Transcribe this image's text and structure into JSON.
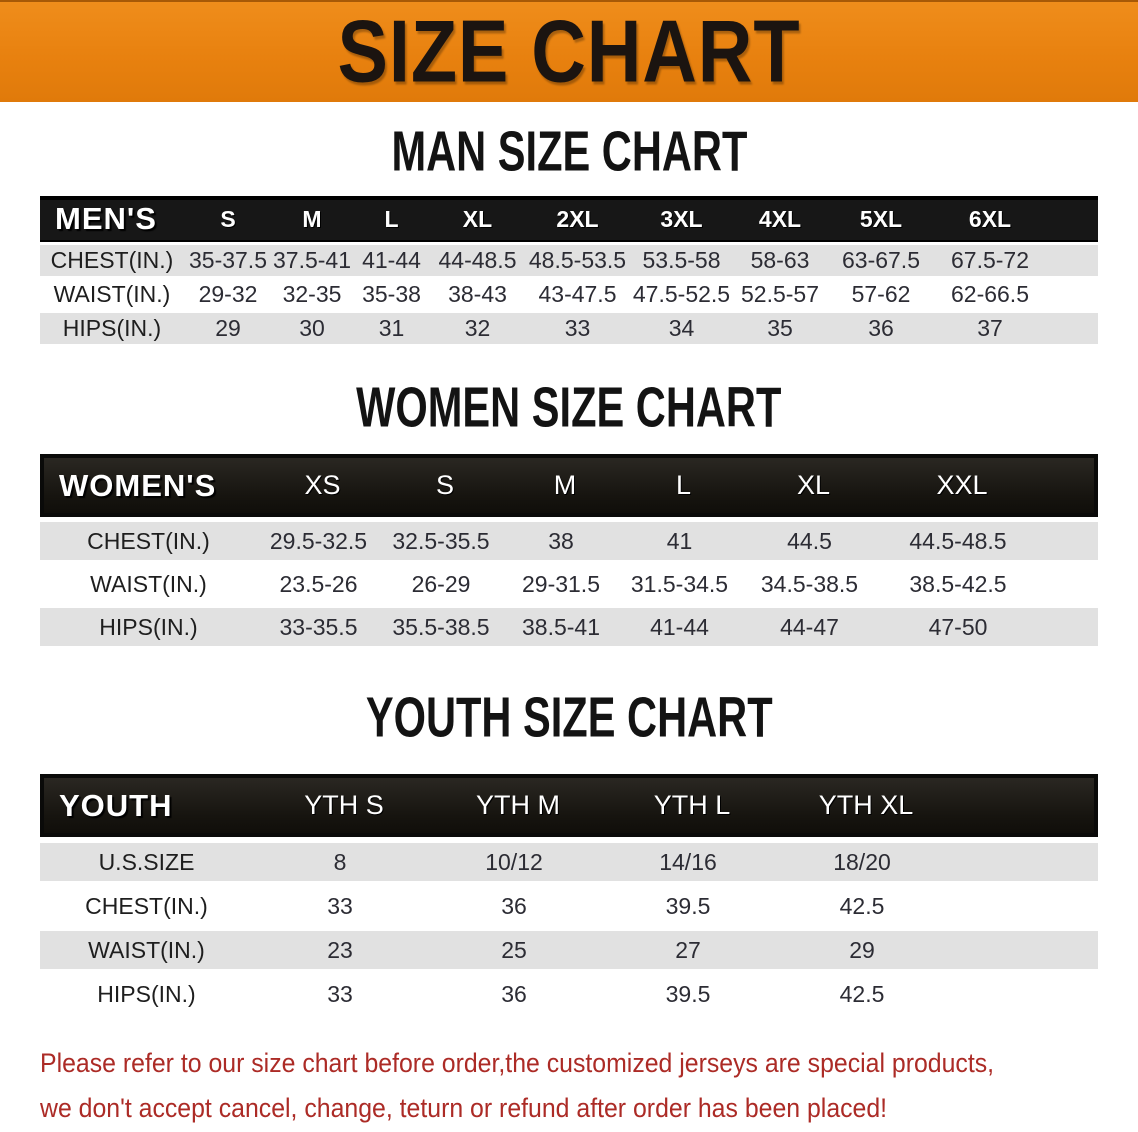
{
  "banner": {
    "title": "SIZE CHART"
  },
  "colors": {
    "banner_orange": "#E8810F",
    "header_bar_black": "#161412",
    "row_gray": "#E1E1E1",
    "footer_red": "#AC2B26"
  },
  "men": {
    "heading": "MAN SIZE CHART",
    "label": "MEN'S",
    "sizes": [
      "S",
      "M",
      "L",
      "XL",
      "2XL",
      "3XL",
      "4XL",
      "5XL",
      "6XL"
    ],
    "rows": [
      {
        "label": "CHEST(IN.)",
        "values": [
          "35-37.5",
          "37.5-41",
          "41-44",
          "44-48.5",
          "48.5-53.5",
          "53.5-58",
          "58-63",
          "63-67.5",
          "67.5-72"
        ]
      },
      {
        "label": "WAIST(IN.)",
        "values": [
          "29-32",
          "32-35",
          "35-38",
          "38-43",
          "43-47.5",
          "47.5-52.5",
          "52.5-57",
          "57-62",
          "62-66.5"
        ]
      },
      {
        "label": "HIPS(IN.)",
        "values": [
          "29",
          "30",
          "31",
          "32",
          "33",
          "34",
          "35",
          "36",
          "37"
        ]
      }
    ]
  },
  "women": {
    "heading": "WOMEN SIZE CHART",
    "label": "WOMEN'S",
    "sizes": [
      "XS",
      "S",
      "M",
      "L",
      "XL",
      "XXL"
    ],
    "rows": [
      {
        "label": "CHEST(IN.)",
        "values": [
          "29.5-32.5",
          "32.5-35.5",
          "38",
          "41",
          "44.5",
          "44.5-48.5"
        ]
      },
      {
        "label": "WAIST(IN.)",
        "values": [
          "23.5-26",
          "26-29",
          "29-31.5",
          "31.5-34.5",
          "34.5-38.5",
          "38.5-42.5"
        ]
      },
      {
        "label": "HIPS(IN.)",
        "values": [
          "33-35.5",
          "35.5-38.5",
          "38.5-41",
          "41-44",
          "44-47",
          "47-50"
        ]
      }
    ]
  },
  "youth": {
    "heading": "YOUTH SIZE CHART",
    "label": "YOUTH",
    "sizes": [
      "YTH S",
      "YTH M",
      "YTH L",
      "YTH XL"
    ],
    "rows": [
      {
        "label": "U.S.SIZE",
        "values": [
          "8",
          "10/12",
          "14/16",
          "18/20"
        ]
      },
      {
        "label": "CHEST(IN.)",
        "values": [
          "33",
          "36",
          "39.5",
          "42.5"
        ]
      },
      {
        "label": "WAIST(IN.)",
        "values": [
          "23",
          "25",
          "27",
          "29"
        ]
      },
      {
        "label": "HIPS(IN.)",
        "values": [
          "33",
          "36",
          "39.5",
          "42.5"
        ]
      }
    ]
  },
  "footer": {
    "line1": "Please refer to our size chart before order,the customized jerseys are special products,",
    "line2": "we don't accept cancel, change, teturn or refund after order has been placed!"
  }
}
